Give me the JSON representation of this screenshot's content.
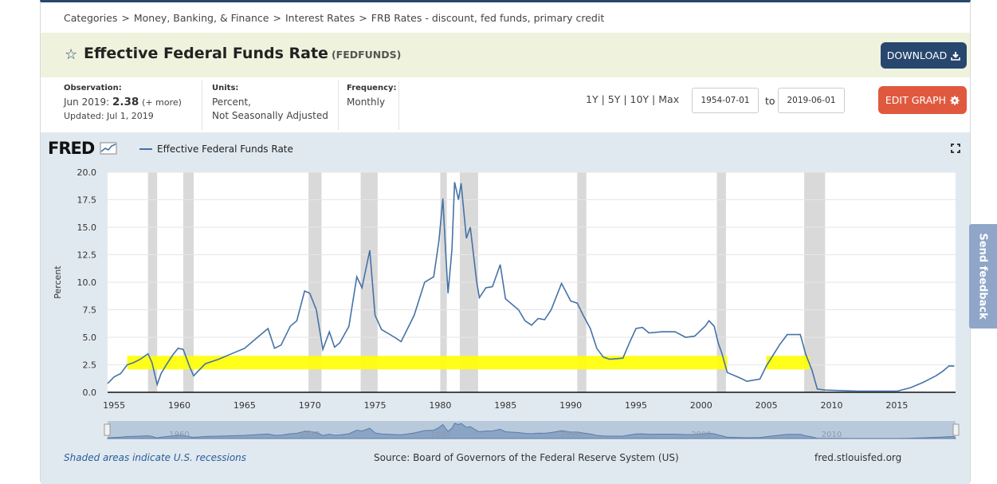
{
  "breadcrumb": [
    "Categories",
    "Money, Banking, & Finance",
    "Interest Rates",
    "FRB Rates - discount, fed funds, primary credit"
  ],
  "series": {
    "title": "Effective Federal Funds Rate",
    "code": "(FEDFUNDS)",
    "download_label": "DOWNLOAD",
    "edit_label": "EDIT GRAPH"
  },
  "meta": {
    "observation_label": "Observation:",
    "observation_date": "Jun 2019:",
    "observation_value": "2.38",
    "observation_more": "(+ more)",
    "updated": "Updated: Jul 1, 2019",
    "units_label": "Units:",
    "units_line1": "Percent,",
    "units_line2": "Not Seasonally Adjusted",
    "frequency_label": "Frequency:",
    "frequency_value": "Monthly"
  },
  "ranges": [
    "1Y",
    "5Y",
    "10Y",
    "Max"
  ],
  "date_from": "1954-07-01",
  "date_to": "2019-06-01",
  "to_label": "to",
  "fred_logo": "FRED",
  "feedback_label": "Send feedback",
  "footer": {
    "recessions": "Shaded areas indicate U.S. recessions",
    "source": "Source: Board of Governors of the Federal Reserve System (US)",
    "site": "fred.stlouisfed.org"
  },
  "colors": {
    "line": "#4572a7",
    "recession": "#d9d9d9",
    "highlight": "#ffff00",
    "download": "#27476e",
    "edit": "#e0593f"
  },
  "chart_data": {
    "type": "line",
    "title": "Effective Federal Funds Rate",
    "xlabel": "",
    "ylabel": "Percent",
    "xlim": [
      1954.5,
      2019.5
    ],
    "ylim": [
      0,
      20
    ],
    "yticks": [
      0.0,
      2.5,
      5.0,
      7.5,
      10.0,
      12.5,
      15.0,
      17.5,
      20.0
    ],
    "xticks": [
      1955,
      1960,
      1965,
      1970,
      1975,
      1980,
      1985,
      1990,
      1995,
      2000,
      2005,
      2010,
      2015
    ],
    "navigator_labels": [
      1960,
      1970,
      1980,
      1990,
      2000,
      2010
    ],
    "recessions": [
      [
        1957.6,
        1958.3
      ],
      [
        1960.3,
        1961.1
      ],
      [
        1969.9,
        1970.9
      ],
      [
        1973.9,
        1975.2
      ],
      [
        1980.0,
        1980.5
      ],
      [
        1981.5,
        1982.9
      ],
      [
        1990.5,
        1991.2
      ],
      [
        2001.2,
        2001.9
      ],
      [
        2007.9,
        2009.5
      ]
    ],
    "highlights": [
      {
        "from": 1956.0,
        "to": 2002.0,
        "level": 2.7
      },
      {
        "from": 2005.0,
        "to": 2008.3,
        "level": 2.7
      }
    ],
    "series": [
      {
        "name": "Effective Federal Funds Rate",
        "points": [
          [
            1954.5,
            0.8
          ],
          [
            1955.0,
            1.4
          ],
          [
            1955.5,
            1.7
          ],
          [
            1956.0,
            2.5
          ],
          [
            1956.5,
            2.7
          ],
          [
            1957.0,
            3.0
          ],
          [
            1957.6,
            3.5
          ],
          [
            1957.9,
            2.7
          ],
          [
            1958.3,
            0.7
          ],
          [
            1958.6,
            1.7
          ],
          [
            1959.0,
            2.5
          ],
          [
            1959.5,
            3.4
          ],
          [
            1959.9,
            4.0
          ],
          [
            1960.3,
            3.9
          ],
          [
            1960.8,
            2.3
          ],
          [
            1961.1,
            1.5
          ],
          [
            1961.5,
            2.0
          ],
          [
            1962.0,
            2.6
          ],
          [
            1963.0,
            3.0
          ],
          [
            1964.0,
            3.5
          ],
          [
            1965.0,
            4.0
          ],
          [
            1966.0,
            5.0
          ],
          [
            1966.8,
            5.8
          ],
          [
            1967.3,
            4.0
          ],
          [
            1967.8,
            4.3
          ],
          [
            1968.5,
            6.0
          ],
          [
            1969.0,
            6.5
          ],
          [
            1969.6,
            9.2
          ],
          [
            1970.0,
            9.0
          ],
          [
            1970.5,
            7.5
          ],
          [
            1971.0,
            3.9
          ],
          [
            1971.5,
            5.5
          ],
          [
            1971.9,
            4.1
          ],
          [
            1972.3,
            4.5
          ],
          [
            1973.0,
            6.0
          ],
          [
            1973.6,
            10.5
          ],
          [
            1974.0,
            9.5
          ],
          [
            1974.6,
            12.9
          ],
          [
            1975.0,
            7.0
          ],
          [
            1975.5,
            5.7
          ],
          [
            1976.5,
            5.0
          ],
          [
            1977.0,
            4.6
          ],
          [
            1978.0,
            7.0
          ],
          [
            1978.8,
            10.0
          ],
          [
            1979.5,
            10.5
          ],
          [
            1979.9,
            13.8
          ],
          [
            1980.2,
            17.6
          ],
          [
            1980.4,
            13.0
          ],
          [
            1980.6,
            9.0
          ],
          [
            1980.9,
            13.0
          ],
          [
            1981.1,
            19.1
          ],
          [
            1981.4,
            17.5
          ],
          [
            1981.6,
            19.0
          ],
          [
            1982.0,
            14.0
          ],
          [
            1982.3,
            15.0
          ],
          [
            1982.8,
            10.0
          ],
          [
            1983.0,
            8.6
          ],
          [
            1983.5,
            9.5
          ],
          [
            1984.0,
            9.6
          ],
          [
            1984.6,
            11.6
          ],
          [
            1985.0,
            8.5
          ],
          [
            1985.5,
            8.0
          ],
          [
            1986.0,
            7.5
          ],
          [
            1986.5,
            6.5
          ],
          [
            1987.0,
            6.1
          ],
          [
            1987.5,
            6.7
          ],
          [
            1988.0,
            6.6
          ],
          [
            1988.5,
            7.5
          ],
          [
            1989.3,
            9.9
          ],
          [
            1990.0,
            8.3
          ],
          [
            1990.5,
            8.1
          ],
          [
            1991.0,
            6.9
          ],
          [
            1991.5,
            5.8
          ],
          [
            1992.0,
            4.0
          ],
          [
            1992.5,
            3.2
          ],
          [
            1993.0,
            3.0
          ],
          [
            1994.0,
            3.1
          ],
          [
            1994.5,
            4.5
          ],
          [
            1995.0,
            5.8
          ],
          [
            1995.5,
            5.9
          ],
          [
            1996.0,
            5.4
          ],
          [
            1997.0,
            5.5
          ],
          [
            1998.0,
            5.5
          ],
          [
            1998.8,
            5.0
          ],
          [
            1999.5,
            5.1
          ],
          [
            2000.3,
            6.0
          ],
          [
            2000.6,
            6.5
          ],
          [
            2001.0,
            6.0
          ],
          [
            2001.3,
            4.5
          ],
          [
            2001.6,
            3.5
          ],
          [
            2002.0,
            1.8
          ],
          [
            2003.0,
            1.3
          ],
          [
            2003.5,
            1.0
          ],
          [
            2004.5,
            1.2
          ],
          [
            2005.0,
            2.4
          ],
          [
            2006.0,
            4.3
          ],
          [
            2006.6,
            5.25
          ],
          [
            2007.6,
            5.25
          ],
          [
            2008.0,
            3.5
          ],
          [
            2008.5,
            2.0
          ],
          [
            2008.9,
            0.3
          ],
          [
            2009.5,
            0.2
          ],
          [
            2012.0,
            0.1
          ],
          [
            2015.0,
            0.1
          ],
          [
            2016.0,
            0.4
          ],
          [
            2017.0,
            0.9
          ],
          [
            2017.5,
            1.2
          ],
          [
            2018.0,
            1.5
          ],
          [
            2018.5,
            1.9
          ],
          [
            2019.0,
            2.4
          ],
          [
            2019.4,
            2.38
          ]
        ]
      }
    ]
  }
}
